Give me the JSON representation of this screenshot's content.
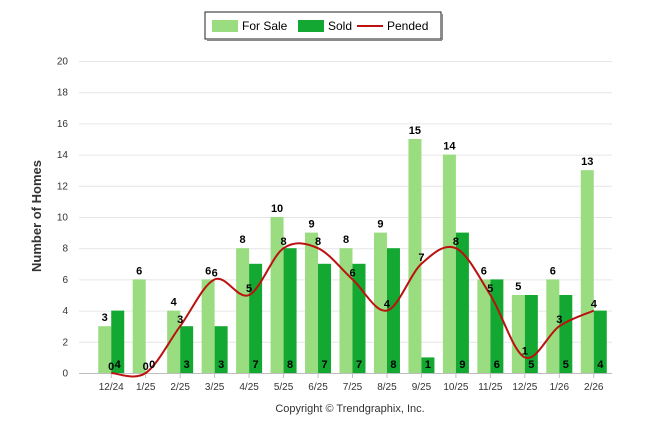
{
  "chart_data": {
    "type": "bar",
    "categories": [
      "12/24",
      "1/25",
      "2/25",
      "3/25",
      "4/25",
      "5/25",
      "6/25",
      "7/25",
      "8/25",
      "9/25",
      "10/25",
      "11/25",
      "12/25",
      "1/26",
      "2/26"
    ],
    "series": [
      {
        "name": "For Sale",
        "type": "bar",
        "color": "#99dd80",
        "values": [
          3,
          6,
          4,
          6,
          8,
          10,
          9,
          8,
          9,
          15,
          14,
          6,
          5,
          6,
          13
        ]
      },
      {
        "name": "Sold",
        "type": "bar",
        "color": "#13a831",
        "values": [
          4,
          0,
          3,
          3,
          7,
          8,
          7,
          7,
          8,
          1,
          9,
          6,
          5,
          5,
          4
        ]
      },
      {
        "name": "Pended",
        "type": "line",
        "color": "#bb1111",
        "values": [
          0,
          0,
          3,
          6,
          5,
          8,
          8,
          6,
          4,
          7,
          8,
          5,
          1,
          3,
          4
        ]
      }
    ],
    "ylabel": "Number of Homes",
    "ylim": [
      0,
      20
    ],
    "yticks": [
      0,
      2,
      4,
      6,
      8,
      10,
      12,
      14,
      16,
      18,
      20
    ],
    "grid": true,
    "legend_position": "top-center"
  },
  "copyright": "Copyright © Trendgraphix, Inc."
}
